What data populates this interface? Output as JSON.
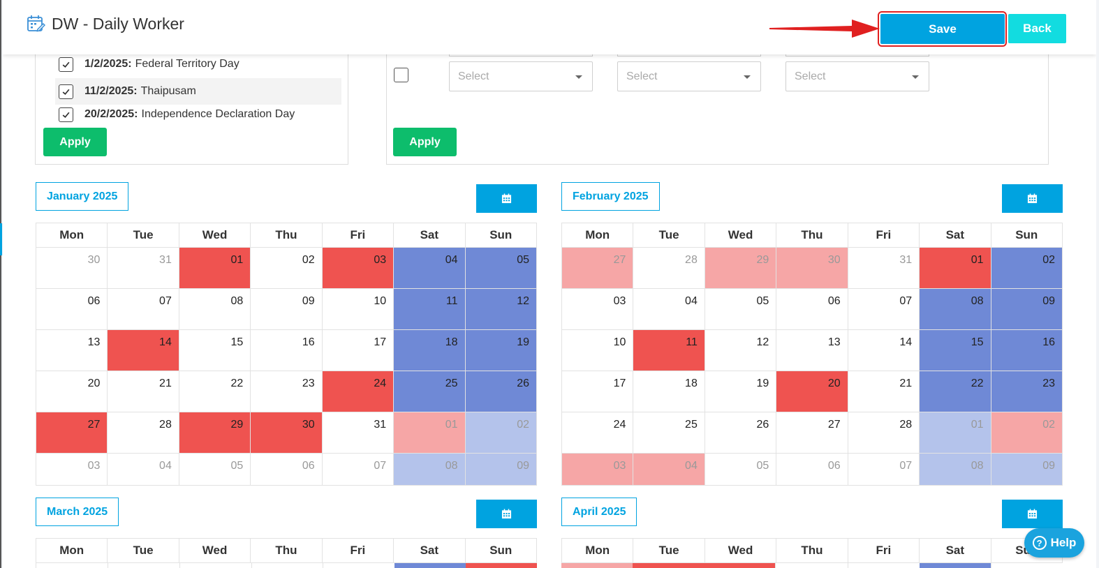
{
  "header": {
    "title": "DW - Daily Worker",
    "save_label": "Save",
    "back_label": "Back",
    "app_icon": "calendar-edit-icon"
  },
  "holiday_panel": {
    "items": [
      {
        "date": "1/2/2025:",
        "name": "Federal Territory Day",
        "checked": true
      },
      {
        "date": "11/2/2025:",
        "name": "Thaipusam",
        "checked": true
      },
      {
        "date": "20/2/2025:",
        "name": "Independence Declaration Day",
        "checked": true
      }
    ],
    "apply_label": "Apply"
  },
  "shift_panel": {
    "selects": [
      {
        "placeholder": "Select"
      },
      {
        "placeholder": "Select"
      },
      {
        "placeholder": "Select"
      }
    ],
    "apply_label": "Apply"
  },
  "weekdays": [
    "Mon",
    "Tue",
    "Wed",
    "Thu",
    "Fri",
    "Sat",
    "Sun"
  ],
  "calendars": [
    {
      "title": "January 2025",
      "weeks": [
        [
          {
            "d": "30",
            "o": 1
          },
          {
            "d": "31",
            "o": 1
          },
          {
            "d": "01",
            "s": "r"
          },
          {
            "d": "02"
          },
          {
            "d": "03",
            "s": "r"
          },
          {
            "d": "04",
            "s": "b"
          },
          {
            "d": "05",
            "s": "b"
          }
        ],
        [
          {
            "d": "06"
          },
          {
            "d": "07"
          },
          {
            "d": "08"
          },
          {
            "d": "09"
          },
          {
            "d": "10"
          },
          {
            "d": "11",
            "s": "b"
          },
          {
            "d": "12",
            "s": "b"
          }
        ],
        [
          {
            "d": "13"
          },
          {
            "d": "14",
            "s": "r"
          },
          {
            "d": "15"
          },
          {
            "d": "16"
          },
          {
            "d": "17"
          },
          {
            "d": "18",
            "s": "b"
          },
          {
            "d": "19",
            "s": "b"
          }
        ],
        [
          {
            "d": "20"
          },
          {
            "d": "21"
          },
          {
            "d": "22"
          },
          {
            "d": "23"
          },
          {
            "d": "24",
            "s": "r"
          },
          {
            "d": "25",
            "s": "b"
          },
          {
            "d": "26",
            "s": "b"
          }
        ],
        [
          {
            "d": "27",
            "s": "r"
          },
          {
            "d": "28"
          },
          {
            "d": "29",
            "s": "r"
          },
          {
            "d": "30",
            "s": "r"
          },
          {
            "d": "31"
          },
          {
            "d": "01",
            "o": 1,
            "s": "pr"
          },
          {
            "d": "02",
            "o": 1,
            "s": "pb"
          }
        ],
        [
          {
            "d": "03",
            "o": 1
          },
          {
            "d": "04",
            "o": 1
          },
          {
            "d": "05",
            "o": 1
          },
          {
            "d": "06",
            "o": 1
          },
          {
            "d": "07",
            "o": 1
          },
          {
            "d": "08",
            "o": 1,
            "s": "pb"
          },
          {
            "d": "09",
            "o": 1,
            "s": "pb"
          }
        ]
      ]
    },
    {
      "title": "February 2025",
      "weeks": [
        [
          {
            "d": "27",
            "o": 1,
            "s": "pr"
          },
          {
            "d": "28",
            "o": 1
          },
          {
            "d": "29",
            "o": 1,
            "s": "pr"
          },
          {
            "d": "30",
            "o": 1,
            "s": "pr"
          },
          {
            "d": "31",
            "o": 1
          },
          {
            "d": "01",
            "s": "r"
          },
          {
            "d": "02",
            "s": "b"
          }
        ],
        [
          {
            "d": "03"
          },
          {
            "d": "04"
          },
          {
            "d": "05"
          },
          {
            "d": "06"
          },
          {
            "d": "07"
          },
          {
            "d": "08",
            "s": "b"
          },
          {
            "d": "09",
            "s": "b"
          }
        ],
        [
          {
            "d": "10"
          },
          {
            "d": "11",
            "s": "r"
          },
          {
            "d": "12"
          },
          {
            "d": "13"
          },
          {
            "d": "14"
          },
          {
            "d": "15",
            "s": "b"
          },
          {
            "d": "16",
            "s": "b"
          }
        ],
        [
          {
            "d": "17"
          },
          {
            "d": "18"
          },
          {
            "d": "19"
          },
          {
            "d": "20",
            "s": "r"
          },
          {
            "d": "21"
          },
          {
            "d": "22",
            "s": "b"
          },
          {
            "d": "23",
            "s": "b"
          }
        ],
        [
          {
            "d": "24"
          },
          {
            "d": "25"
          },
          {
            "d": "26"
          },
          {
            "d": "27"
          },
          {
            "d": "28"
          },
          {
            "d": "01",
            "o": 1,
            "s": "pb"
          },
          {
            "d": "02",
            "o": 1,
            "s": "pr"
          }
        ],
        [
          {
            "d": "03",
            "o": 1,
            "s": "pr"
          },
          {
            "d": "04",
            "o": 1,
            "s": "pr"
          },
          {
            "d": "05",
            "o": 1
          },
          {
            "d": "06",
            "o": 1
          },
          {
            "d": "07",
            "o": 1
          },
          {
            "d": "08",
            "o": 1,
            "s": "pb"
          },
          {
            "d": "09",
            "o": 1,
            "s": "pb"
          }
        ]
      ]
    },
    {
      "title": "March 2025",
      "weeks": []
    },
    {
      "title": "April 2025",
      "weeks": []
    }
  ],
  "help_label": "Help",
  "colors": {
    "accent": "#00a3e0",
    "holiday_red": "#ef5350",
    "weekend_blue": "#6f89d6",
    "apply_green": "#0dbd6c",
    "annotation_red": "#e02020"
  }
}
